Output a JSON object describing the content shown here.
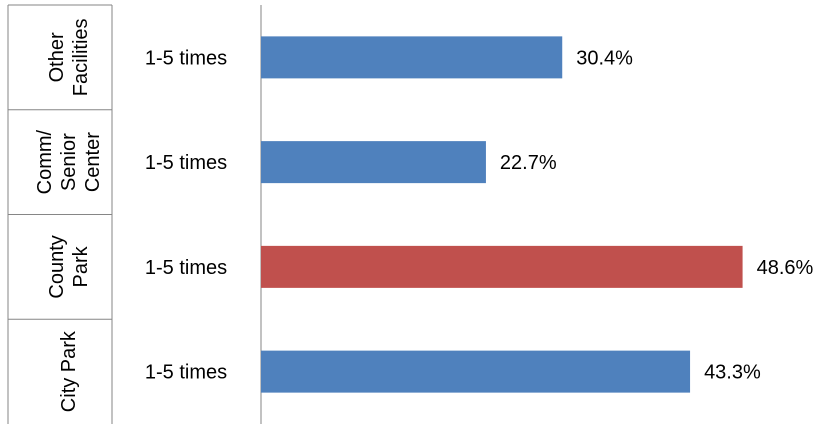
{
  "chart_data": {
    "type": "bar",
    "orientation": "horizontal",
    "rows": [
      {
        "group_lines": [
          "Other",
          "Facilities"
        ],
        "category": "1-5 times",
        "value": 30.4,
        "value_label": "30.4%",
        "color": "#4f81bd"
      },
      {
        "group_lines": [
          "Comm/",
          "Senior",
          "Center"
        ],
        "category": "1-5 times",
        "value": 22.7,
        "value_label": "22.7%",
        "color": "#4f81bd"
      },
      {
        "group_lines": [
          "County",
          "Park"
        ],
        "category": "1-5 times",
        "value": 48.6,
        "value_label": "48.6%",
        "color": "#c0504d"
      },
      {
        "group_lines": [
          "City Park"
        ],
        "category": "1-5 times",
        "value": 43.3,
        "value_label": "43.3%",
        "color": "#4f81bd"
      }
    ],
    "xlim": [
      0,
      55
    ],
    "grid": false,
    "legend": "none",
    "title": "",
    "xlabel": "",
    "ylabel": ""
  }
}
